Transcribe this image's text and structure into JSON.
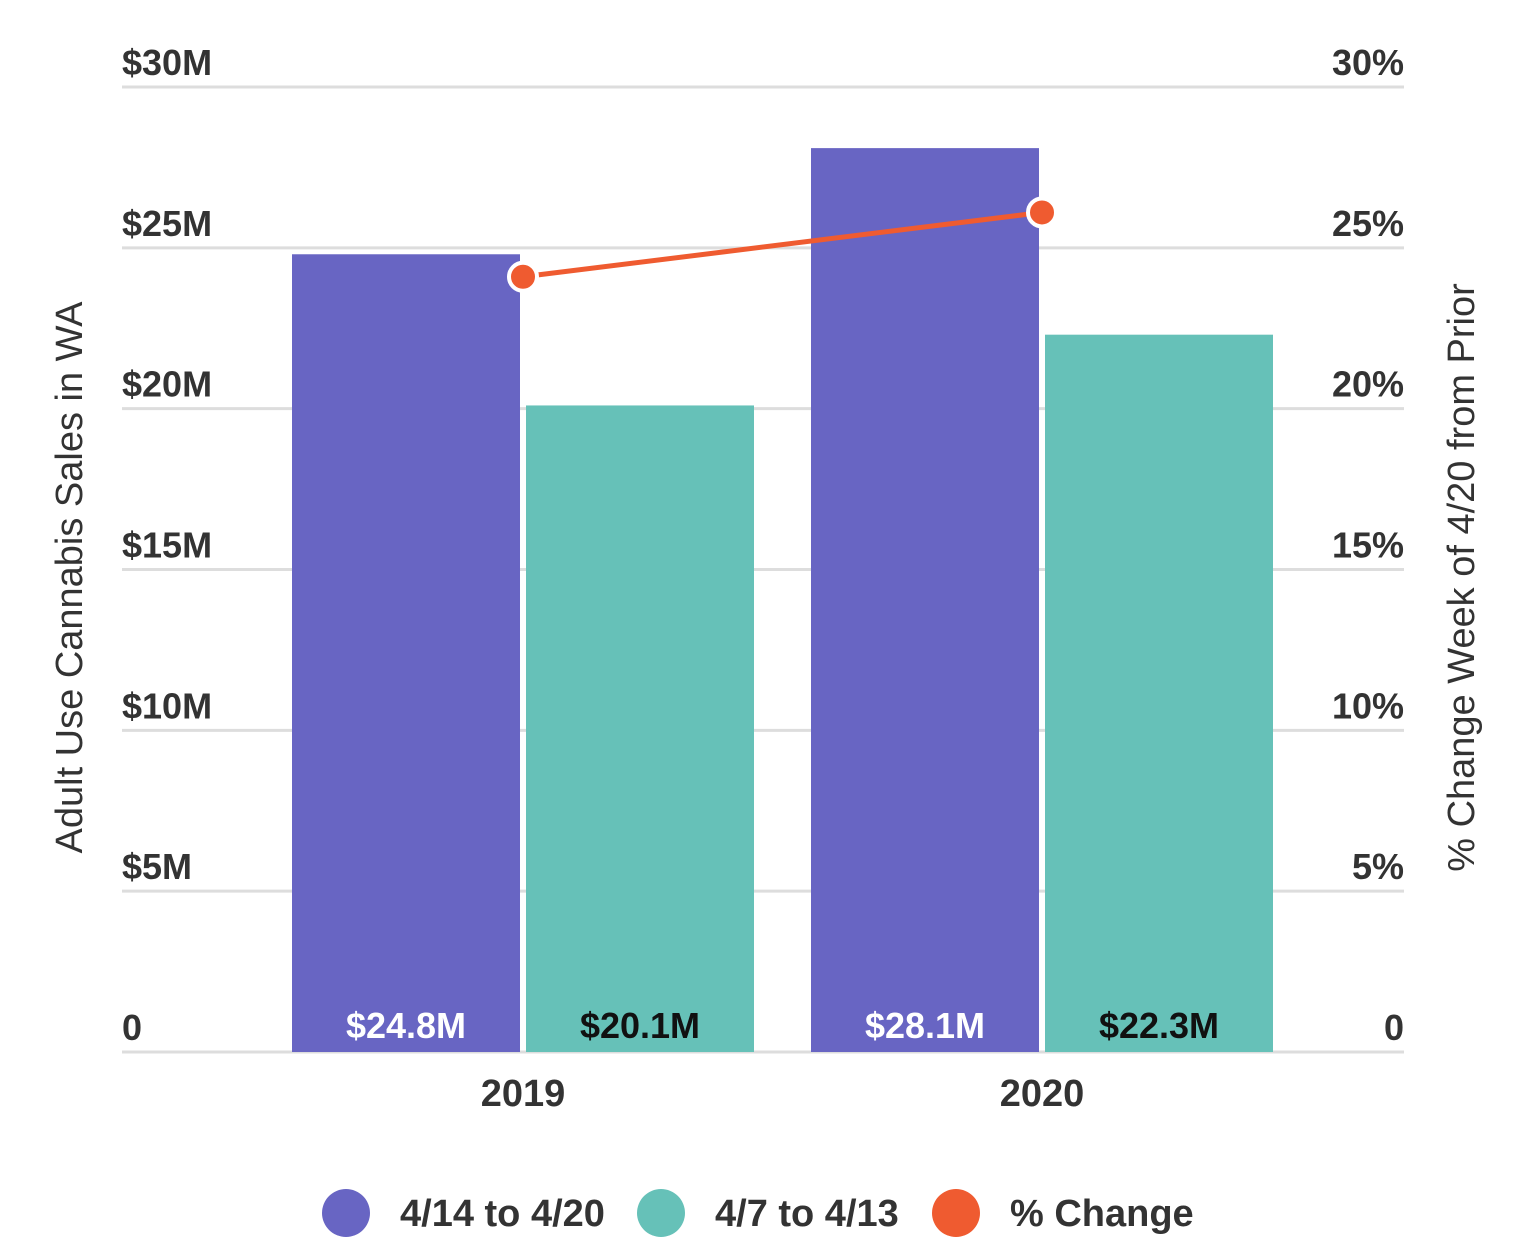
{
  "chart_data": {
    "type": "bar",
    "categories": [
      "2019",
      "2020"
    ],
    "series": [
      {
        "name": "4/14 to 4/20",
        "type": "bar",
        "axis": "left",
        "color": "#6865c3",
        "values": [
          24.8,
          28.1
        ],
        "labels": [
          "$24.8M",
          "$28.1M"
        ],
        "label_color": "#ffffff"
      },
      {
        "name": "4/7 to 4/13",
        "type": "bar",
        "axis": "left",
        "color": "#66c1b8",
        "values": [
          20.1,
          22.3
        ],
        "labels": [
          "$20.1M",
          "$22.3M"
        ],
        "label_color": "#111111"
      },
      {
        "name": "% Change",
        "type": "line",
        "axis": "right",
        "color": "#ef5b30",
        "values": [
          24.1,
          26.1
        ]
      }
    ],
    "y_left": {
      "label": "Adult Use Cannabis Sales in WA",
      "range": [
        0,
        30
      ],
      "ticks": [
        0,
        5,
        10,
        15,
        20,
        25,
        30
      ],
      "tick_labels": [
        "0",
        "$5M",
        "$10M",
        "$15M",
        "$20M",
        "$25M",
        "$30M"
      ]
    },
    "y_right": {
      "label": "% Change Week of 4/20 from Prior",
      "range": [
        0,
        30
      ],
      "ticks": [
        0,
        5,
        10,
        15,
        20,
        25,
        30
      ],
      "tick_labels": [
        "0",
        "5%",
        "10%",
        "15%",
        "20%",
        "25%",
        "30%"
      ]
    },
    "grid": true,
    "legend": {
      "position": "bottom",
      "items": [
        "4/14 to 4/20",
        "4/7 to 4/13",
        "% Change"
      ]
    }
  }
}
